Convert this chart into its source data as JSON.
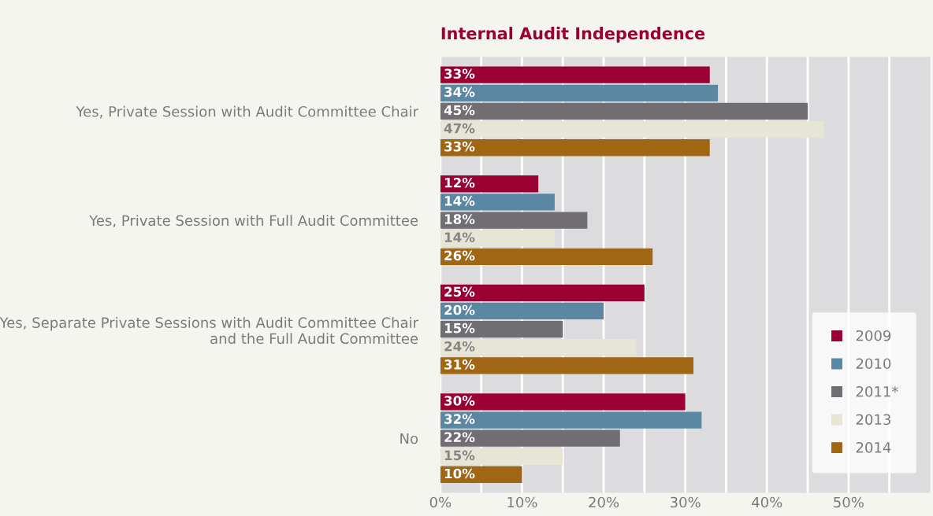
{
  "chart_data": {
    "type": "bar",
    "orientation": "horizontal",
    "title": "Internal Audit Independence",
    "categories": [
      "Yes, Private Session with Audit Committee Chair",
      "Yes, Private Session with Full Audit Committee",
      "Yes, Separate Private Sessions with Audit Committee Chair\nand the Full Audit Committee",
      "No"
    ],
    "series": [
      {
        "name": "2009",
        "color": "#9b0033",
        "values": [
          33,
          12,
          25,
          30
        ],
        "value_labels": [
          "33%",
          "12%",
          "25%",
          "30%"
        ]
      },
      {
        "name": "2010",
        "color": "#5b87a3",
        "values": [
          34,
          14,
          20,
          32
        ],
        "value_labels": [
          "34%",
          "14%",
          "20%",
          "32%"
        ]
      },
      {
        "name": "2011*",
        "color": "#706d73",
        "values": [
          45,
          18,
          15,
          22
        ],
        "value_labels": [
          "45%",
          "18%",
          "15%",
          "22%"
        ]
      },
      {
        "name": "2013",
        "color": "#e6e5d6",
        "values": [
          47,
          14,
          24,
          15
        ],
        "value_labels": [
          "47%",
          "14%",
          "24%",
          "15%"
        ]
      },
      {
        "name": "2014",
        "color": "#a06614",
        "values": [
          33,
          26,
          31,
          10
        ],
        "value_labels": [
          "33%",
          "26%",
          "31%",
          "10%"
        ]
      }
    ],
    "xlim": [
      0,
      60
    ],
    "xticks": [
      {
        "value": 0,
        "label": "0%"
      },
      {
        "value": 5,
        "label": null
      },
      {
        "value": 10,
        "label": "10%"
      },
      {
        "value": 15,
        "label": null
      },
      {
        "value": 20,
        "label": "20%"
      },
      {
        "value": 25,
        "label": null
      },
      {
        "value": 30,
        "label": "30%"
      },
      {
        "value": 35,
        "label": null
      },
      {
        "value": 40,
        "label": "40%"
      },
      {
        "value": 45,
        "label": null
      },
      {
        "value": 50,
        "label": "50%"
      },
      {
        "value": 55,
        "label": null
      }
    ],
    "grid": "x",
    "legend": "bottom right"
  }
}
